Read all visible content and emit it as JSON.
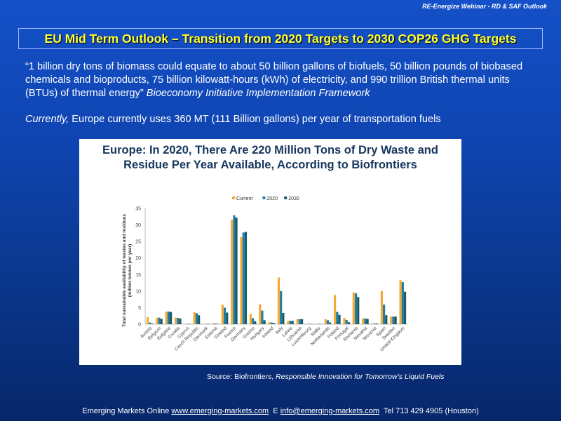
{
  "header": {
    "caption": "RE-Energize Webinar - RD & SAF Outlook"
  },
  "slide": {
    "title": "EU Mid Term Outlook – Transition from 2020 Targets to 2030 COP26 GHG Targets",
    "quote": "“1 billion dry tons of biomass could equate to about 50 billion gallons of biofuels, 50 billion pounds of biobased chemicals and bioproducts, 75 billion kilowatt-hours (kWh) of electricity, and 990 trillion British thermal units (BTUs) of thermal energy”",
    "quote_source": "Bioeconomy Initiative Implementation Framework",
    "current_prefix": "Currently,",
    "current_text": " Europe currently uses 360 MT (111 Billion gallons) per year of transportation fuels",
    "source_prefix": "Source: Biofrontiers, ",
    "source_title": "Responsible Innovation for Tomorrow’s Liquid Fuels"
  },
  "footer": {
    "prefix": "Emerging Markets Online ",
    "website": "www.emerging-markets.com",
    "email_prefix": "  E ",
    "email": "info@emerging-markets.com",
    "phone": "  Tel 713 429 4905 (Houston)"
  },
  "chart_data": {
    "type": "bar",
    "title": "Europe: In 2020, There Are 220 Million Tons of Dry Waste and Residue Per Year Available, According to Biofrontiers",
    "ylabel": "Total sustainable availability of wastes and residues (million tonnes per year)",
    "xlabel": "",
    "ylim": [
      0,
      35
    ],
    "yticks": [
      0,
      5,
      10,
      15,
      20,
      25,
      30,
      35
    ],
    "legend_position": "top-center",
    "categories": [
      "Austria",
      "Belgium",
      "Bulgaria",
      "Croatia",
      "Cyprus",
      "Czech Republic",
      "Denmark",
      "Estonia",
      "Finland",
      "France",
      "Germany",
      "Greece",
      "Hungary",
      "Ireland",
      "Italy",
      "Latvia",
      "Lithuania",
      "Luxembourg",
      "Malta",
      "Netherlands",
      "Poland",
      "Portugal",
      "Romania",
      "Slovakia",
      "Slovenia",
      "Spain",
      "Sweden",
      "United Kingdom"
    ],
    "series": [
      {
        "name": "Current",
        "color": "#f7a833",
        "values": [
          2.1,
          1.9,
          3.8,
          2.0,
          0.1,
          3.6,
          0.1,
          0.3,
          5.9,
          31.6,
          26.3,
          3.1,
          6.0,
          0.6,
          14.1,
          1.0,
          1.5,
          0.1,
          0.1,
          1.5,
          8.8,
          1.9,
          9.6,
          1.8,
          0.2,
          10.0,
          2.3,
          13.3
        ]
      },
      {
        "name": "2020",
        "color": "#1f7fa0",
        "values": [
          0.5,
          2.0,
          3.8,
          1.9,
          0.1,
          3.3,
          0.1,
          0.2,
          5.0,
          32.9,
          27.7,
          1.8,
          4.1,
          0.5,
          10.0,
          1.0,
          1.5,
          0.1,
          0.1,
          1.2,
          3.7,
          1.3,
          9.3,
          1.7,
          0.2,
          5.9,
          2.3,
          12.7
        ]
      },
      {
        "name": "2030",
        "color": "#1d5a6a",
        "values": [
          0.2,
          1.6,
          3.7,
          1.7,
          0.1,
          2.7,
          0.1,
          0.1,
          3.5,
          32.2,
          27.9,
          0.9,
          1.2,
          0.3,
          3.4,
          1.0,
          1.5,
          0.1,
          0.1,
          0.5,
          2.8,
          0.6,
          8.2,
          1.6,
          0.2,
          2.7,
          2.3,
          9.8
        ]
      }
    ]
  }
}
